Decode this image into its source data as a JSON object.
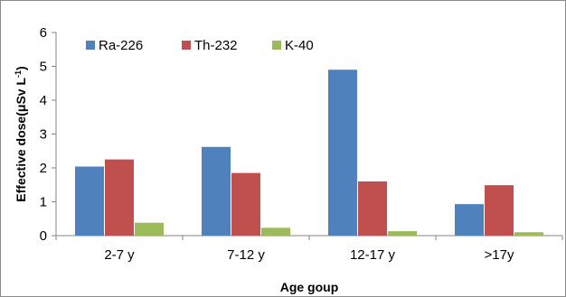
{
  "chart_data": {
    "type": "bar",
    "xlabel": "Age goup",
    "ylabel": "Effective dose(μSv L",
    "ylabel_superscript": "-1",
    "ylabel_close": ")",
    "categories": [
      "2-7 y",
      "7-12 y",
      "12-17 y",
      ">17y"
    ],
    "series": [
      {
        "name": "Ra-226",
        "color": "#4f81bd",
        "values": [
          2.04,
          2.62,
          4.9,
          0.93
        ]
      },
      {
        "name": "Th-232",
        "color": "#c0504d",
        "values": [
          2.25,
          1.85,
          1.6,
          1.49
        ]
      },
      {
        "name": "K-40",
        "color": "#9bbb59",
        "values": [
          0.38,
          0.23,
          0.13,
          0.1
        ]
      }
    ],
    "ylim": [
      0,
      6
    ],
    "yticks": [
      "0",
      "1",
      "2",
      "3",
      "4",
      "5",
      "6"
    ],
    "grid": false,
    "legend_position": "top-left"
  }
}
